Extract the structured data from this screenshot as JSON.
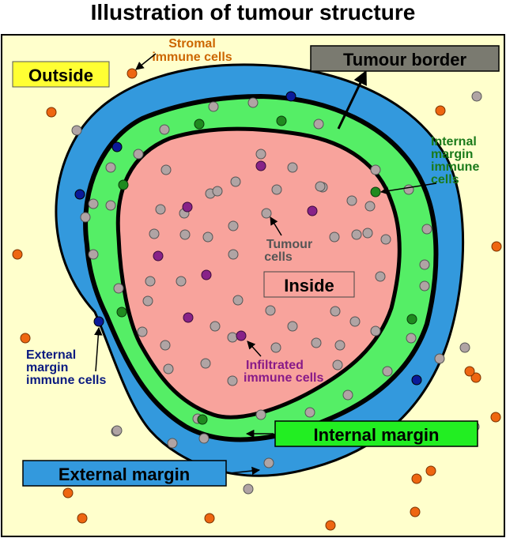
{
  "title": "Illustration of tumour structure",
  "labels": {
    "outside": "Outside",
    "tumour_border": "Tumour border",
    "stromal_immune_cells": [
      "Stromal",
      "immune cells"
    ],
    "internal_margin_immune_cells": [
      "Internal",
      "margin",
      "immune",
      "cells"
    ],
    "tumour_cells": [
      "Tumour",
      "cells"
    ],
    "inside": "Inside",
    "external_margin_immune_cells": [
      "External",
      "margin",
      "immune cells"
    ],
    "infiltrated_immune_cells": [
      "Infiltrated",
      "immune cells"
    ],
    "internal_margin": "Internal margin",
    "external_margin": "External margin"
  },
  "colors": {
    "background": "#ffffcc",
    "external_margin": "#3399dd",
    "internal_margin": "#55ee66",
    "inside": "#f8a39c",
    "tumour_cell": "#b0a4a4",
    "stromal_cell": "#ee6611",
    "external_immune_cell": "#0a1a99",
    "internal_immune_cell": "#1f8a1f",
    "infiltrated_cell": "#882288",
    "outside_label_bg": "#ffff33",
    "tumour_border_bg": "#7a7a70",
    "internal_margin_label_bg": "#22ee22",
    "external_margin_label_bg": "#3399dd",
    "stromal_text": "#cc6600",
    "internal_immune_text": "#1a7a1a",
    "external_immune_text": "#0a1a80",
    "infiltrated_text": "#881a88",
    "tumour_text": "#555555"
  }
}
